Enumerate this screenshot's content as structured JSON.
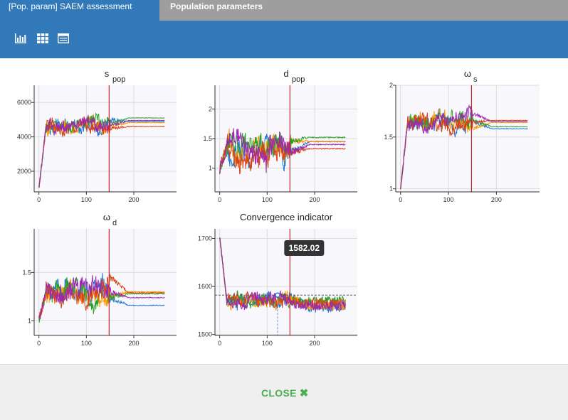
{
  "tabs": [
    {
      "label": "[Pop. param] SAEM assessment",
      "active": true
    },
    {
      "label": "Population parameters",
      "active": false
    }
  ],
  "toolbar": {
    "icons": [
      "bar-chart-icon",
      "grid-icon",
      "table-icon"
    ]
  },
  "footer": {
    "close_label": "CLOSE",
    "close_glyph": "✖"
  },
  "colors": {
    "header": "#3279ba",
    "tab_inactive": "#9e9e9e",
    "chains": [
      "#1f77d4",
      "#ff9800",
      "#2ca02c",
      "#d84315",
      "#9c27b0"
    ],
    "vline": "#c62828"
  },
  "chart_data": [
    {
      "type": "line",
      "title": "s",
      "title_sub": "pop",
      "x_ticks": [
        0,
        100,
        200
      ],
      "y_ticks": [
        2000,
        4000,
        6000
      ],
      "y_tick_labels": [
        "2000",
        "4000",
        "6000"
      ],
      "xlim": [
        -10,
        290
      ],
      "ylim": [
        800,
        7000
      ],
      "vline_x": 148,
      "n_iter": 265,
      "burn_end": 150,
      "series_end": [
        4900,
        4830,
        5100,
        4600,
        4950
      ],
      "start": 1000,
      "level": 4600,
      "amp": 650
    },
    {
      "type": "line",
      "title": "d",
      "title_sub": "pop",
      "x_ticks": [
        0,
        100,
        200
      ],
      "y_ticks": [
        1,
        1.5,
        2
      ],
      "y_tick_labels": [
        "1",
        "1.5",
        "2"
      ],
      "xlim": [
        -10,
        290
      ],
      "ylim": [
        0.6,
        2.4
      ],
      "vline_x": 148,
      "n_iter": 265,
      "burn_end": 150,
      "series_end": [
        1.45,
        1.45,
        1.52,
        1.33,
        1.4
      ],
      "start": 1.0,
      "level": 1.35,
      "amp": 0.35
    },
    {
      "type": "line",
      "title": "ω",
      "title_sub": "s",
      "x_ticks": [
        0,
        100,
        200
      ],
      "y_ticks": [
        1,
        1.5,
        2
      ],
      "y_tick_labels": [
        "1",
        "1.5",
        "2"
      ],
      "xlim": [
        -10,
        290
      ],
      "ylim": [
        0.97,
        2.0
      ],
      "vline_x": 148,
      "n_iter": 265,
      "burn_end": 150,
      "series_end": [
        1.58,
        1.64,
        1.6,
        1.66,
        1.65
      ],
      "start": 1.0,
      "level": 1.65,
      "amp": 0.12
    },
    {
      "type": "line",
      "title": "ω",
      "title_sub": "d",
      "x_ticks": [
        0,
        100,
        200
      ],
      "y_ticks": [
        1,
        1.5
      ],
      "y_tick_labels": [
        "1",
        "1.5"
      ],
      "xlim": [
        -10,
        290
      ],
      "ylim": [
        0.85,
        1.95
      ],
      "vline_x": 148,
      "n_iter": 265,
      "burn_end": 150,
      "series_end": [
        1.16,
        1.3,
        1.28,
        1.29,
        1.24
      ],
      "start": 1.0,
      "level": 1.3,
      "amp": 0.18
    },
    {
      "type": "line",
      "title": "Convergence indicator",
      "title_sub": "",
      "x_ticks": [
        0,
        100,
        200
      ],
      "y_ticks": [
        1500,
        1600,
        1700
      ],
      "y_tick_labels": [
        "1500",
        "1600",
        "1700"
      ],
      "xlim": [
        -10,
        290
      ],
      "ylim": [
        1498,
        1720
      ],
      "vline_x": 148,
      "n_iter": 265,
      "burn_end": 150,
      "series_end": [
        1555,
        1560,
        1570,
        1565,
        1560
      ],
      "start": 1705,
      "level": 1570,
      "amp": 22,
      "hline_y": 1582.02,
      "marker_x": 122,
      "tooltip": "1582.02"
    }
  ]
}
